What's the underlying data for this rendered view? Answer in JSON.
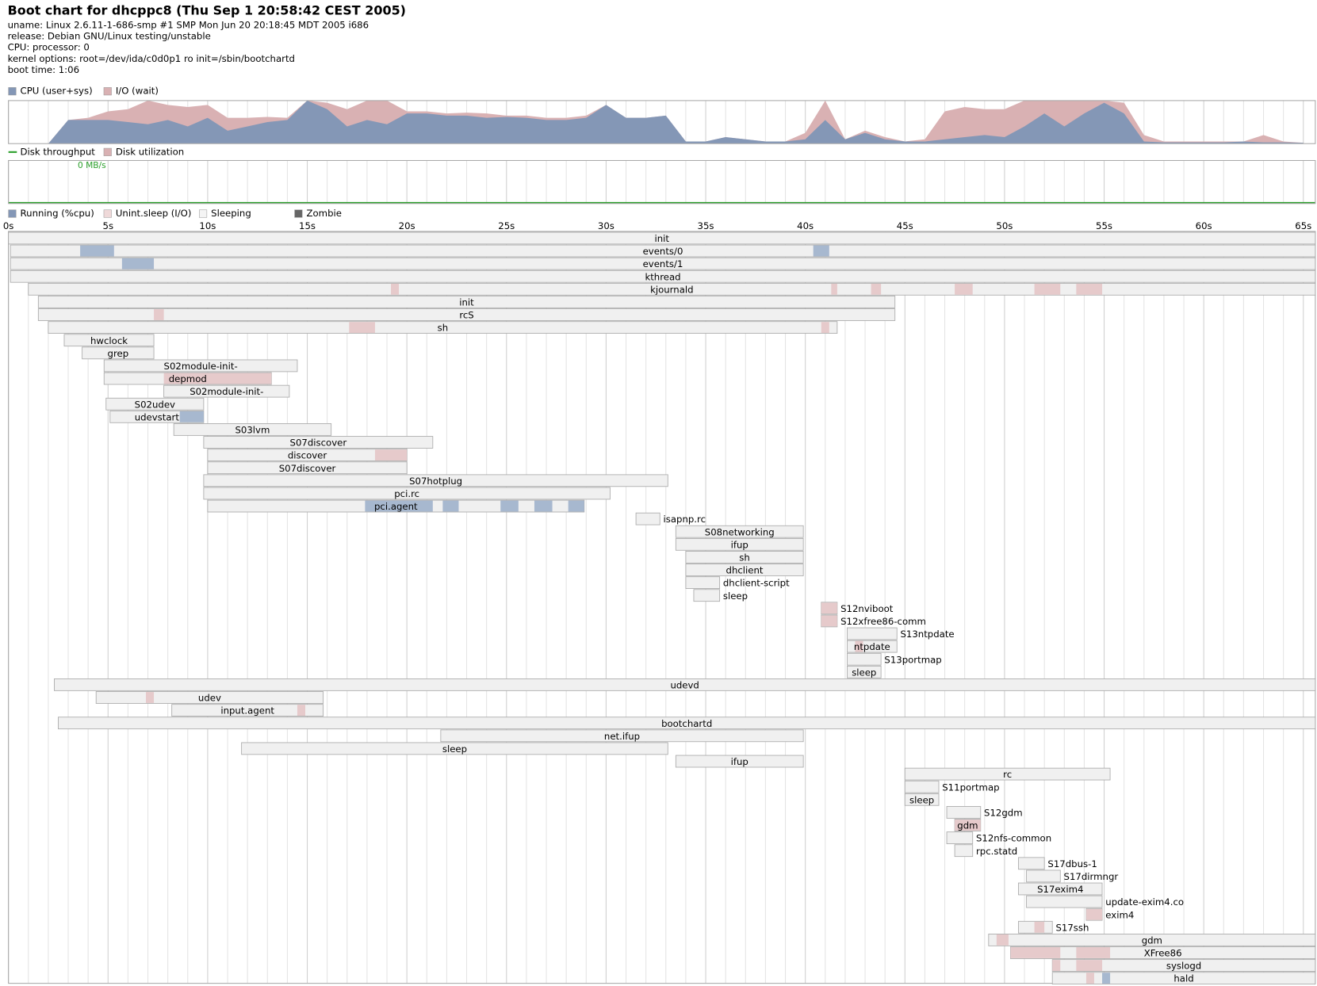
{
  "header": {
    "title": "Boot chart for dhcppc8 (Thu Sep  1 20:58:42 CEST 2005)",
    "lines": [
      "uname: Linux 2.6.11-1-686-smp #1 SMP Mon Jun 20 20:18:45 MDT 2005 i686",
      "release: Debian GNU/Linux testing/unstable",
      "CPU: processor: 0",
      "kernel options: root=/dev/ida/c0d0p1 ro init=/sbin/bootchartd",
      "boot time: 1:06"
    ]
  },
  "cpu_chart": {
    "legend": [
      "CPU (user+sys)",
      "I/O (wait)"
    ],
    "colors": [
      "#8497b6",
      "#d9b1b3"
    ],
    "ylim": [
      0,
      100
    ],
    "x": [
      0,
      1,
      2,
      3,
      4,
      5,
      6,
      7,
      8,
      9,
      10,
      11,
      12,
      13,
      14,
      15,
      16,
      17,
      18,
      19,
      20,
      21,
      22,
      23,
      24,
      25,
      26,
      27,
      28,
      29,
      30,
      31,
      32,
      33,
      34,
      35,
      36,
      37,
      38,
      39,
      40,
      41,
      42,
      43,
      44,
      45,
      46,
      47,
      48,
      49,
      50,
      51,
      52,
      53,
      54,
      55,
      56,
      57,
      58,
      59,
      60,
      61,
      62,
      63,
      64,
      65
    ],
    "cpu": [
      0,
      0,
      0,
      55,
      55,
      55,
      50,
      45,
      55,
      40,
      60,
      30,
      40,
      50,
      55,
      100,
      80,
      40,
      55,
      45,
      70,
      70,
      65,
      65,
      60,
      62,
      60,
      55,
      55,
      60,
      90,
      60,
      60,
      65,
      5,
      5,
      15,
      10,
      5,
      5,
      10,
      55,
      10,
      25,
      10,
      5,
      5,
      10,
      15,
      20,
      15,
      40,
      70,
      40,
      70,
      95,
      70,
      5,
      3,
      3,
      3,
      3,
      5,
      3,
      3,
      2
    ],
    "io": [
      0,
      0,
      0,
      0,
      5,
      20,
      30,
      55,
      35,
      45,
      30,
      30,
      20,
      12,
      5,
      0,
      15,
      40,
      45,
      55,
      5,
      5,
      5,
      7,
      10,
      3,
      5,
      5,
      5,
      5,
      0,
      0,
      0,
      0,
      0,
      0,
      0,
      0,
      0,
      0,
      15,
      45,
      0,
      5,
      5,
      0,
      5,
      65,
      70,
      60,
      65,
      60,
      30,
      60,
      30,
      5,
      25,
      15,
      2,
      2,
      2,
      2,
      0,
      17,
      2,
      0
    ]
  },
  "disk_chart": {
    "legend": [
      "Disk throughput",
      "Disk utilization"
    ],
    "colors": [
      "#2ca02c",
      "#d9b1b3"
    ],
    "throughput_label": "0 MB/s"
  },
  "process_chart": {
    "legend": [
      "Running (%cpu)",
      "Unint.sleep (I/O)",
      "Sleeping",
      "Zombie"
    ],
    "legend_colors": [
      "#8497b6",
      "#efd9d9",
      "#f4f4f4",
      "#666666"
    ],
    "xlim": [
      0,
      65.6
    ],
    "xticks": [
      {
        "value": 0,
        "label": "0s"
      },
      {
        "value": 5,
        "label": "5s"
      },
      {
        "value": 10,
        "label": "10s"
      },
      {
        "value": 15,
        "label": "15s"
      },
      {
        "value": 20,
        "label": "20s"
      },
      {
        "value": 25,
        "label": "25s"
      },
      {
        "value": 30,
        "label": "30s"
      },
      {
        "value": 35,
        "label": "35s"
      },
      {
        "value": 40,
        "label": "40s"
      },
      {
        "value": 45,
        "label": "45s"
      },
      {
        "value": 50,
        "label": "50s"
      },
      {
        "value": 55,
        "label": "55s"
      },
      {
        "value": 60,
        "label": "60s"
      },
      {
        "value": 65,
        "label": "65s"
      }
    ],
    "processes": [
      {
        "name": "init",
        "start": 0,
        "end": 65.6,
        "running": [],
        "io": []
      },
      {
        "name": "events/0",
        "start": 0.1,
        "end": 65.6,
        "running": [
          [
            3.6,
            5.3
          ],
          [
            40.4,
            41.2
          ]
        ],
        "io": []
      },
      {
        "name": "events/1",
        "start": 0.1,
        "end": 65.6,
        "running": [
          [
            5.7,
            7.3
          ]
        ],
        "io": []
      },
      {
        "name": "kthread",
        "start": 0.1,
        "end": 65.6,
        "running": [],
        "io": []
      },
      {
        "name": "kjournald",
        "start": 1.0,
        "end": 65.6,
        "running": [],
        "io": [
          [
            19.2,
            19.6
          ],
          [
            41.3,
            41.6
          ],
          [
            43.3,
            43.8
          ],
          [
            47.5,
            48.4
          ],
          [
            51.5,
            52.8
          ],
          [
            53.6,
            54.9
          ]
        ]
      },
      {
        "name": "init",
        "start": 1.5,
        "end": 44.5,
        "running": [],
        "io": []
      },
      {
        "name": "rcS",
        "start": 1.5,
        "end": 44.5,
        "running": [],
        "io": [
          [
            7.3,
            7.8
          ]
        ]
      },
      {
        "name": "sh",
        "start": 2.0,
        "end": 41.6,
        "running": [],
        "io": [
          [
            17.1,
            18.4
          ],
          [
            40.8,
            41.2
          ]
        ]
      },
      {
        "name": "hwclock",
        "start": 2.8,
        "end": 7.3,
        "running": [],
        "io": []
      },
      {
        "name": "grep",
        "start": 3.7,
        "end": 7.3,
        "running": [],
        "io": []
      },
      {
        "name": "S02module-init-",
        "start": 4.8,
        "end": 14.5,
        "running": [],
        "io": []
      },
      {
        "name": "depmod",
        "start": 4.8,
        "end": 13.2,
        "running": [],
        "io": [
          [
            7.8,
            13.2
          ]
        ]
      },
      {
        "name": "S02module-init-",
        "start": 7.8,
        "end": 14.1,
        "running": [],
        "io": []
      },
      {
        "name": "S02udev",
        "start": 4.9,
        "end": 9.8,
        "running": [],
        "io": []
      },
      {
        "name": "udevstart",
        "start": 5.1,
        "end": 9.8,
        "running": [
          [
            8.6,
            9.8
          ]
        ],
        "io": []
      },
      {
        "name": "S03lvm",
        "start": 8.3,
        "end": 16.2,
        "running": [],
        "io": []
      },
      {
        "name": "S07discover",
        "start": 9.8,
        "end": 21.3,
        "running": [],
        "io": []
      },
      {
        "name": "discover",
        "start": 10.0,
        "end": 20.0,
        "running": [],
        "io": [
          [
            18.4,
            20.0
          ]
        ]
      },
      {
        "name": "S07discover",
        "start": 10.0,
        "end": 20.0,
        "running": [],
        "io": []
      },
      {
        "name": "S07hotplug",
        "start": 9.8,
        "end": 33.1,
        "running": [],
        "io": []
      },
      {
        "name": "pci.rc",
        "start": 9.8,
        "end": 30.2,
        "running": [],
        "io": []
      },
      {
        "name": "pci.agent",
        "start": 10.0,
        "end": 28.9,
        "running": [
          [
            17.9,
            21.3
          ],
          [
            21.8,
            22.6
          ],
          [
            24.7,
            25.6
          ],
          [
            26.4,
            27.3
          ],
          [
            28.1,
            28.9
          ]
        ],
        "io": []
      },
      {
        "name": "isapnp.rc",
        "start": 31.5,
        "end": 32.7,
        "running": [],
        "io": []
      },
      {
        "name": "S08networking",
        "start": 33.5,
        "end": 39.9,
        "running": [],
        "io": []
      },
      {
        "name": "ifup",
        "start": 33.5,
        "end": 39.9,
        "running": [],
        "io": []
      },
      {
        "name": "sh",
        "start": 34.0,
        "end": 39.9,
        "running": [],
        "io": []
      },
      {
        "name": "dhclient",
        "start": 34.0,
        "end": 39.9,
        "running": [],
        "io": []
      },
      {
        "name": "dhclient-script",
        "start": 34.0,
        "end": 35.7,
        "running": [],
        "io": []
      },
      {
        "name": "sleep",
        "start": 34.4,
        "end": 35.7,
        "running": [],
        "io": []
      },
      {
        "name": "S12nviboot",
        "start": 40.8,
        "end": 41.6,
        "running": [],
        "io": [
          [
            40.8,
            41.6
          ]
        ]
      },
      {
        "name": "S12xfree86-comm",
        "start": 40.8,
        "end": 41.6,
        "running": [],
        "io": [
          [
            40.8,
            41.6
          ]
        ]
      },
      {
        "name": "S13ntpdate",
        "start": 42.1,
        "end": 44.6,
        "running": [],
        "io": []
      },
      {
        "name": "ntpdate",
        "start": 42.1,
        "end": 44.6,
        "running": [],
        "io": [
          [
            42.5,
            42.9
          ]
        ]
      },
      {
        "name": "S13portmap",
        "start": 42.1,
        "end": 43.8,
        "running": [],
        "io": []
      },
      {
        "name": "sleep",
        "start": 42.1,
        "end": 43.8,
        "running": [],
        "io": []
      },
      {
        "name": "udevd",
        "start": 2.3,
        "end": 65.6,
        "running": [],
        "io": []
      },
      {
        "name": "udev",
        "start": 4.4,
        "end": 15.8,
        "running": [],
        "io": [
          [
            6.9,
            7.3
          ]
        ]
      },
      {
        "name": "input.agent",
        "start": 8.2,
        "end": 15.8,
        "running": [],
        "io": [
          [
            14.5,
            14.9
          ]
        ]
      },
      {
        "name": "bootchartd",
        "start": 2.5,
        "end": 65.6,
        "running": [],
        "io": []
      },
      {
        "name": "net.ifup",
        "start": 21.7,
        "end": 39.9,
        "running": [],
        "io": []
      },
      {
        "name": "sleep",
        "start": 11.7,
        "end": 33.1,
        "running": [],
        "io": []
      },
      {
        "name": "ifup",
        "start": 33.5,
        "end": 39.9,
        "running": [],
        "io": []
      },
      {
        "name": "rc",
        "start": 45.0,
        "end": 55.3,
        "running": [],
        "io": []
      },
      {
        "name": "S11portmap",
        "start": 45.0,
        "end": 46.7,
        "running": [],
        "io": []
      },
      {
        "name": "sleep",
        "start": 45.0,
        "end": 46.7,
        "running": [],
        "io": []
      },
      {
        "name": "S12gdm",
        "start": 47.1,
        "end": 48.8,
        "running": [],
        "io": []
      },
      {
        "name": "gdm",
        "start": 47.5,
        "end": 48.8,
        "running": [],
        "io": [
          [
            47.5,
            48.8
          ]
        ]
      },
      {
        "name": "S12nfs-common",
        "start": 47.1,
        "end": 48.4,
        "running": [],
        "io": []
      },
      {
        "name": "rpc.statd",
        "start": 47.5,
        "end": 48.4,
        "running": [],
        "io": []
      },
      {
        "name": "S17dbus-1",
        "start": 50.7,
        "end": 52.0,
        "running": [],
        "io": []
      },
      {
        "name": "S17dirmngr",
        "start": 51.1,
        "end": 52.8,
        "running": [],
        "io": []
      },
      {
        "name": "S17exim4",
        "start": 50.7,
        "end": 54.9,
        "running": [],
        "io": []
      },
      {
        "name": "update-exim4.co",
        "start": 51.1,
        "end": 54.9,
        "running": [],
        "io": []
      },
      {
        "name": "exim4",
        "start": 54.1,
        "end": 54.9,
        "running": [],
        "io": [
          [
            54.1,
            54.9
          ]
        ]
      },
      {
        "name": "S17ssh",
        "start": 50.7,
        "end": 52.4,
        "running": [],
        "io": [
          [
            51.5,
            52.0
          ]
        ]
      },
      {
        "name": "gdm",
        "start": 49.2,
        "end": 65.6,
        "running": [],
        "io": [
          [
            49.6,
            50.2
          ]
        ]
      },
      {
        "name": "XFree86",
        "start": 50.3,
        "end": 65.6,
        "running": [],
        "io": [
          [
            50.3,
            52.8
          ],
          [
            53.6,
            55.3
          ]
        ]
      },
      {
        "name": "syslogd",
        "start": 52.4,
        "end": 65.6,
        "running": [],
        "io": [
          [
            52.4,
            52.8
          ],
          [
            53.6,
            54.9
          ]
        ]
      },
      {
        "name": "hald",
        "start": 52.4,
        "end": 65.6,
        "running": [
          [
            54.9,
            55.3
          ]
        ],
        "io": [
          [
            54.1,
            54.5
          ]
        ]
      }
    ]
  }
}
